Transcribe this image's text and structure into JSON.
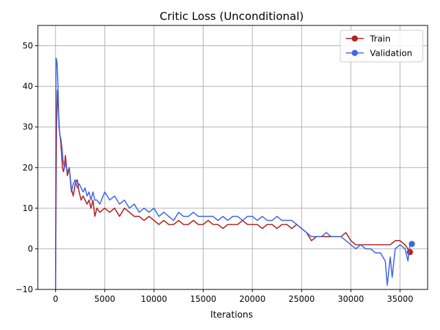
{
  "chart_data": {
    "type": "line",
    "title": "Critic Loss (Unconditional)",
    "xlabel": "Iterations",
    "ylabel": "",
    "xlim": [
      -1800,
      37800
    ],
    "ylim": [
      -10,
      55
    ],
    "xticks": [
      0,
      5000,
      10000,
      15000,
      20000,
      25000,
      30000,
      35000
    ],
    "yticks": [
      -10,
      0,
      10,
      20,
      30,
      40,
      50
    ],
    "grid": true,
    "legend_position": "top-right",
    "series": [
      {
        "name": "Train",
        "color": "#b22222",
        "points": [
          [
            0,
            -10
          ],
          [
            100,
            30
          ],
          [
            200,
            39
          ],
          [
            300,
            34
          ],
          [
            400,
            29
          ],
          [
            500,
            27
          ],
          [
            600,
            24
          ],
          [
            700,
            20
          ],
          [
            800,
            19
          ],
          [
            900,
            20
          ],
          [
            1000,
            23
          ],
          [
            1200,
            18
          ],
          [
            1400,
            20
          ],
          [
            1600,
            15
          ],
          [
            1800,
            13
          ],
          [
            2000,
            16
          ],
          [
            2200,
            17
          ],
          [
            2400,
            14
          ],
          [
            2600,
            12
          ],
          [
            2800,
            13
          ],
          [
            3000,
            12
          ],
          [
            3200,
            11
          ],
          [
            3400,
            12
          ],
          [
            3600,
            10
          ],
          [
            3800,
            12
          ],
          [
            4000,
            8
          ],
          [
            4200,
            10
          ],
          [
            4500,
            9
          ],
          [
            5000,
            10
          ],
          [
            5500,
            9
          ],
          [
            6000,
            10
          ],
          [
            6500,
            8
          ],
          [
            7000,
            10
          ],
          [
            7500,
            9
          ],
          [
            8000,
            8
          ],
          [
            8500,
            8
          ],
          [
            9000,
            7
          ],
          [
            9500,
            8
          ],
          [
            10000,
            7
          ],
          [
            10500,
            6
          ],
          [
            11000,
            7
          ],
          [
            11500,
            6
          ],
          [
            12000,
            6
          ],
          [
            12500,
            7
          ],
          [
            13000,
            6
          ],
          [
            13500,
            6
          ],
          [
            14000,
            7
          ],
          [
            14500,
            6
          ],
          [
            15000,
            6
          ],
          [
            15500,
            7
          ],
          [
            16000,
            6
          ],
          [
            16500,
            6
          ],
          [
            17000,
            5
          ],
          [
            17500,
            6
          ],
          [
            18000,
            6
          ],
          [
            18500,
            6
          ],
          [
            19000,
            7
          ],
          [
            19500,
            6
          ],
          [
            20000,
            6
          ],
          [
            20500,
            6
          ],
          [
            21000,
            5
          ],
          [
            21500,
            6
          ],
          [
            22000,
            6
          ],
          [
            22500,
            5
          ],
          [
            23000,
            6
          ],
          [
            23500,
            6
          ],
          [
            24000,
            5
          ],
          [
            24500,
            6
          ],
          [
            25000,
            5
          ],
          [
            25500,
            4
          ],
          [
            26000,
            2
          ],
          [
            26500,
            3
          ],
          [
            27000,
            3
          ],
          [
            27500,
            3
          ],
          [
            28000,
            3
          ],
          [
            28500,
            3
          ],
          [
            29000,
            3
          ],
          [
            29500,
            4
          ],
          [
            30000,
            2
          ],
          [
            30500,
            1
          ],
          [
            31000,
            1
          ],
          [
            31500,
            1
          ],
          [
            32000,
            1
          ],
          [
            32500,
            1
          ],
          [
            33000,
            1
          ],
          [
            33500,
            1
          ],
          [
            34000,
            1
          ],
          [
            34500,
            2
          ],
          [
            35000,
            2
          ],
          [
            35500,
            1
          ],
          [
            36000,
            -0.8
          ]
        ]
      },
      {
        "name": "Validation",
        "color": "#4169e1",
        "points": [
          [
            0,
            -10
          ],
          [
            50,
            47
          ],
          [
            150,
            46
          ],
          [
            250,
            40
          ],
          [
            350,
            30
          ],
          [
            450,
            28
          ],
          [
            550,
            27
          ],
          [
            650,
            25
          ],
          [
            750,
            22
          ],
          [
            900,
            20
          ],
          [
            1000,
            21
          ],
          [
            1200,
            19
          ],
          [
            1400,
            20
          ],
          [
            1600,
            14
          ],
          [
            1800,
            16
          ],
          [
            2000,
            17
          ],
          [
            2200,
            15
          ],
          [
            2400,
            16
          ],
          [
            2600,
            15
          ],
          [
            2800,
            14
          ],
          [
            3000,
            15
          ],
          [
            3200,
            13
          ],
          [
            3400,
            14
          ],
          [
            3600,
            12
          ],
          [
            3800,
            14
          ],
          [
            4000,
            12
          ],
          [
            4200,
            12
          ],
          [
            4500,
            11
          ],
          [
            5000,
            14
          ],
          [
            5500,
            12
          ],
          [
            6000,
            13
          ],
          [
            6500,
            11
          ],
          [
            7000,
            12
          ],
          [
            7500,
            10
          ],
          [
            8000,
            11
          ],
          [
            8500,
            9
          ],
          [
            9000,
            10
          ],
          [
            9500,
            9
          ],
          [
            10000,
            10
          ],
          [
            10500,
            8
          ],
          [
            11000,
            9
          ],
          [
            11500,
            8
          ],
          [
            12000,
            7
          ],
          [
            12500,
            9
          ],
          [
            13000,
            8
          ],
          [
            13500,
            8
          ],
          [
            14000,
            9
          ],
          [
            14500,
            8
          ],
          [
            15000,
            8
          ],
          [
            15500,
            8
          ],
          [
            16000,
            8
          ],
          [
            16500,
            7
          ],
          [
            17000,
            8
          ],
          [
            17500,
            7
          ],
          [
            18000,
            8
          ],
          [
            18500,
            8
          ],
          [
            19000,
            7
          ],
          [
            19500,
            8
          ],
          [
            20000,
            8
          ],
          [
            20500,
            7
          ],
          [
            21000,
            8
          ],
          [
            21500,
            7
          ],
          [
            22000,
            7
          ],
          [
            22500,
            8
          ],
          [
            23000,
            7
          ],
          [
            23500,
            7
          ],
          [
            24000,
            7
          ],
          [
            24500,
            6
          ],
          [
            25000,
            5
          ],
          [
            25500,
            4
          ],
          [
            26000,
            3
          ],
          [
            26500,
            3
          ],
          [
            27000,
            3
          ],
          [
            27500,
            4
          ],
          [
            28000,
            3
          ],
          [
            28500,
            3
          ],
          [
            29000,
            3
          ],
          [
            29500,
            2
          ],
          [
            30000,
            1
          ],
          [
            30500,
            0
          ],
          [
            31000,
            1
          ],
          [
            31500,
            0
          ],
          [
            32000,
            0
          ],
          [
            32500,
            -1
          ],
          [
            33000,
            -1
          ],
          [
            33500,
            -3
          ],
          [
            33700,
            -9
          ],
          [
            34000,
            -2
          ],
          [
            34200,
            -7
          ],
          [
            34500,
            0
          ],
          [
            35000,
            1
          ],
          [
            35500,
            0
          ],
          [
            35800,
            -3
          ],
          [
            36000,
            1.2
          ],
          [
            36200,
            1.2
          ]
        ]
      }
    ]
  }
}
